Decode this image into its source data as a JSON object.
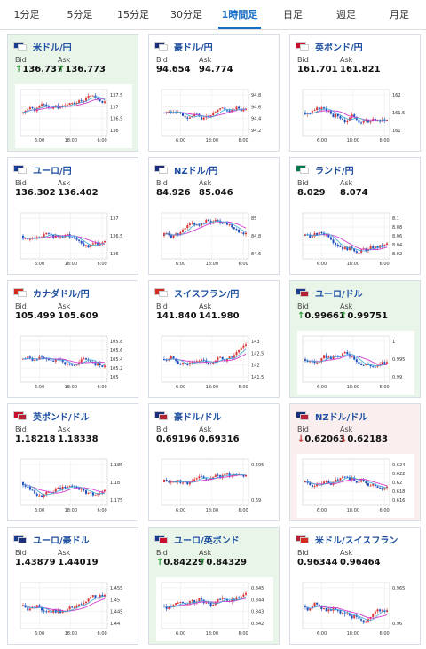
{
  "tabs": [
    "1分足",
    "5分足",
    "15分足",
    "30分足",
    "1時間足",
    "日足",
    "週足",
    "月足"
  ],
  "active_tab": 4,
  "labels": {
    "bid": "Bid",
    "ask": "Ask"
  },
  "cards": [
    {
      "pair": "米ドル/円",
      "bid": "136.737",
      "ask": "136.773",
      "dir": "up",
      "flags": [
        "#1a3c8f",
        "#ffffff"
      ],
      "yticks": [
        "137.5",
        "137",
        "136.5",
        "136"
      ],
      "xticks": [
        "6:00",
        "18:00",
        "6:00"
      ],
      "seed": 1
    },
    {
      "pair": "豪ドル/円",
      "bid": "94.654",
      "ask": "94.774",
      "dir": "",
      "flags": [
        "#1a2e7a",
        "#ffffff"
      ],
      "yticks": [
        "94.8",
        "94.6",
        "94.4",
        "94.2"
      ],
      "xticks": [
        "6:00",
        "18:00",
        "6:00"
      ],
      "seed": 2
    },
    {
      "pair": "英ポンド/円",
      "bid": "161.701",
      "ask": "161.821",
      "dir": "",
      "flags": [
        "#c8102e",
        "#ffffff"
      ],
      "yticks": [
        "162",
        "161.5",
        "161"
      ],
      "xticks": [
        "6:00",
        "18:00",
        "6:00"
      ],
      "seed": 3
    },
    {
      "pair": "ユーロ/円",
      "bid": "136.302",
      "ask": "136.402",
      "dir": "",
      "flags": [
        "#1a3c8f",
        "#ffffff"
      ],
      "yticks": [
        "137",
        "136.5",
        "136"
      ],
      "xticks": [
        "6:00",
        "18:00",
        "6:00"
      ],
      "seed": 4
    },
    {
      "pair": "NZドル/円",
      "bid": "84.926",
      "ask": "85.046",
      "dir": "",
      "flags": [
        "#1a2e7a",
        "#ffffff"
      ],
      "yticks": [
        "85",
        "84.8",
        "84.6"
      ],
      "xticks": [
        "6:00",
        "18:00",
        "6:00"
      ],
      "seed": 5
    },
    {
      "pair": "ランド/円",
      "bid": "8.029",
      "ask": "8.074",
      "dir": "",
      "flags": [
        "#007a4d",
        "#ffffff"
      ],
      "yticks": [
        "8.1",
        "8.08",
        "8.06",
        "8.04",
        "8.02"
      ],
      "xticks": [
        "6:00",
        "18:00",
        "6:00"
      ],
      "seed": 6
    },
    {
      "pair": "カナダドル/円",
      "bid": "105.499",
      "ask": "105.609",
      "dir": "",
      "flags": [
        "#d52b1e",
        "#ffffff"
      ],
      "yticks": [
        "105.8",
        "105.6",
        "105.4",
        "105.2",
        "105"
      ],
      "xticks": [
        "6:00",
        "18:00",
        "6:00"
      ],
      "seed": 7
    },
    {
      "pair": "スイスフラン/円",
      "bid": "141.840",
      "ask": "141.980",
      "dir": "",
      "flags": [
        "#d52b1e",
        "#ffffff"
      ],
      "yticks": [
        "143",
        "142.5",
        "142",
        "141.5"
      ],
      "xticks": [
        "6:00",
        "18:00",
        "6:00"
      ],
      "seed": 8
    },
    {
      "pair": "ユーロ/ドル",
      "bid": "0.99661",
      "ask": "0.99751",
      "dir": "up",
      "flags": [
        "#1a3c8f",
        "#b22234"
      ],
      "yticks": [
        "1",
        "0.995",
        "0.99"
      ],
      "xticks": [
        "6:00",
        "18:00",
        "6:00"
      ],
      "seed": 9
    },
    {
      "pair": "英ポンド/ドル",
      "bid": "1.18218",
      "ask": "1.18338",
      "dir": "",
      "flags": [
        "#c8102e",
        "#b22234"
      ],
      "yticks": [
        "1.185",
        "1.18",
        "1.175"
      ],
      "xticks": [
        "6:00",
        "18:00",
        "6:00"
      ],
      "seed": 10
    },
    {
      "pair": "豪ドル/ドル",
      "bid": "0.69196",
      "ask": "0.69316",
      "dir": "",
      "flags": [
        "#1a2e7a",
        "#b22234"
      ],
      "yticks": [
        "0.695",
        "0.69"
      ],
      "xticks": [
        "6:00",
        "18:00",
        "6:00"
      ],
      "seed": 11
    },
    {
      "pair": "NZドル/ドル",
      "bid": "0.62063",
      "ask": "0.62183",
      "dir": "down",
      "flags": [
        "#1a2e7a",
        "#b22234"
      ],
      "yticks": [
        "0.624",
        "0.622",
        "0.62",
        "0.618",
        "0.616"
      ],
      "xticks": [
        "6:00",
        "18:00",
        "6:00"
      ],
      "seed": 12
    },
    {
      "pair": "ユーロ/豪ドル",
      "bid": "1.43879",
      "ask": "1.44019",
      "dir": "",
      "flags": [
        "#1a3c8f",
        "#1a2e7a"
      ],
      "yticks": [
        "1.455",
        "1.45",
        "1.445",
        "1.44"
      ],
      "xticks": [
        "6:00",
        "18:00",
        "6:00"
      ],
      "seed": 13
    },
    {
      "pair": "ユーロ/英ポンド",
      "bid": "0.84229",
      "ask": "0.84329",
      "dir": "up",
      "flags": [
        "#1a3c8f",
        "#c8102e"
      ],
      "yticks": [
        "0.845",
        "0.844",
        "0.843",
        "0.842"
      ],
      "xticks": [
        "6:00",
        "18:00",
        "6:00"
      ],
      "seed": 14
    },
    {
      "pair": "米ドル/スイスフラン",
      "bid": "0.96344",
      "ask": "0.96464",
      "dir": "",
      "flags": [
        "#b22234",
        "#d52b1e"
      ],
      "yticks": [
        "0.965",
        "0.96"
      ],
      "xticks": [
        "6:00",
        "18:00",
        "6:00"
      ],
      "seed": 15
    }
  ]
}
